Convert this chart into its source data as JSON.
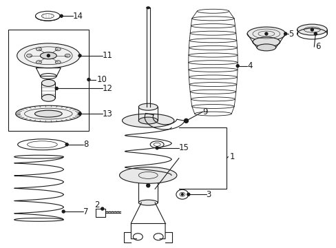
{
  "bg_color": "#ffffff",
  "fig_width": 4.89,
  "fig_height": 3.6,
  "dpi": 100,
  "line_color": "#1a1a1a",
  "lw": 0.8,
  "tlw": 0.5
}
